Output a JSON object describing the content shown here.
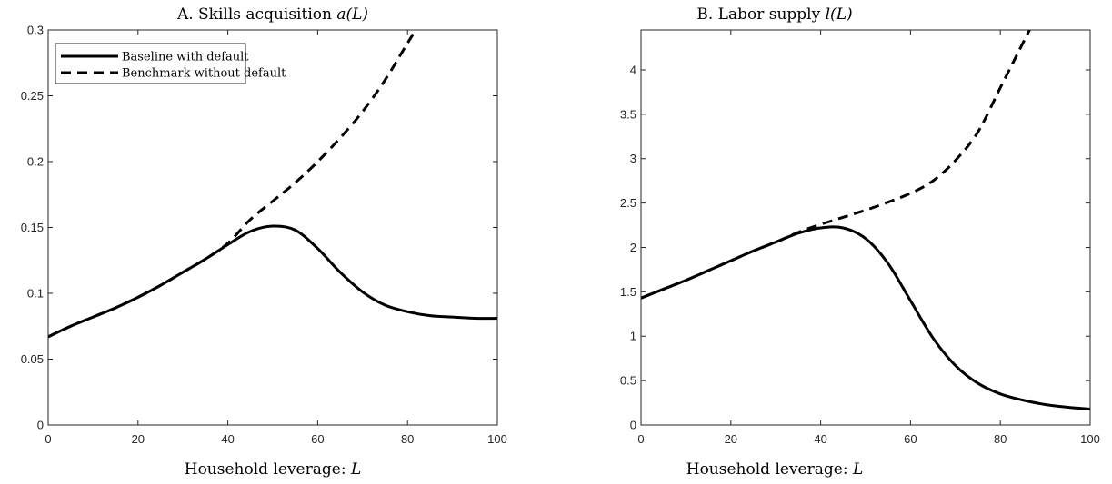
{
  "chart_data": [
    {
      "type": "line",
      "title": "A. Skills acquisition",
      "title_math": "a(L)",
      "xlabel": "Household leverage:",
      "xlabel_math": "L",
      "ylabel": "",
      "xlim": [
        0,
        100
      ],
      "ylim": [
        0,
        0.3
      ],
      "xticks": [
        "0",
        "20",
        "40",
        "60",
        "80",
        "100"
      ],
      "yticks": [
        "0",
        "0.05",
        "0.1",
        "0.15",
        "0.2",
        "0.25",
        "0.3"
      ],
      "grid": false,
      "legend": "top-left",
      "series": [
        {
          "name": "Baseline with default",
          "style": "solid",
          "x": [
            0,
            5,
            10,
            15,
            20,
            25,
            30,
            35,
            40,
            45,
            50,
            55,
            60,
            65,
            70,
            75,
            80,
            85,
            90,
            95,
            100
          ],
          "y": [
            0.067,
            0.075,
            0.082,
            0.089,
            0.097,
            0.106,
            0.116,
            0.126,
            0.137,
            0.147,
            0.151,
            0.148,
            0.134,
            0.116,
            0.101,
            0.091,
            0.086,
            0.083,
            0.082,
            0.081,
            0.081
          ]
        },
        {
          "name": "Benchmark without default",
          "style": "dashed",
          "x": [
            0,
            5,
            10,
            15,
            20,
            25,
            30,
            35,
            40,
            45,
            50,
            55,
            60,
            65,
            70,
            75,
            80,
            82
          ],
          "y": [
            0.067,
            0.075,
            0.082,
            0.089,
            0.097,
            0.106,
            0.116,
            0.126,
            0.138,
            0.156,
            0.17,
            0.184,
            0.2,
            0.218,
            0.238,
            0.262,
            0.29,
            0.301
          ]
        }
      ]
    },
    {
      "type": "line",
      "title": "B. Labor supply",
      "title_math": "l(L)",
      "xlabel": "Household leverage:",
      "xlabel_math": "L",
      "ylabel": "",
      "xlim": [
        0,
        100
      ],
      "ylim": [
        0,
        4.45
      ],
      "xticks": [
        "0",
        "20",
        "40",
        "60",
        "80",
        "100"
      ],
      "yticks": [
        "0",
        "0.5",
        "1",
        "1.5",
        "2",
        "2.5",
        "3",
        "3.5",
        "4"
      ],
      "grid": false,
      "legend": "none",
      "series": [
        {
          "name": "Baseline with default",
          "style": "solid",
          "x": [
            0,
            5,
            10,
            15,
            20,
            25,
            30,
            35,
            40,
            45,
            50,
            55,
            60,
            65,
            70,
            75,
            80,
            85,
            90,
            95,
            100
          ],
          "y": [
            1.43,
            1.53,
            1.63,
            1.74,
            1.85,
            1.96,
            2.06,
            2.16,
            2.22,
            2.22,
            2.1,
            1.82,
            1.4,
            0.98,
            0.67,
            0.47,
            0.35,
            0.28,
            0.23,
            0.2,
            0.18
          ]
        },
        {
          "name": "Benchmark without default",
          "style": "dashed",
          "x": [
            0,
            5,
            10,
            15,
            20,
            25,
            30,
            35,
            40,
            45,
            50,
            55,
            60,
            65,
            70,
            75,
            80,
            82,
            84,
            86,
            87
          ],
          "y": [
            1.43,
            1.53,
            1.63,
            1.74,
            1.85,
            1.96,
            2.06,
            2.17,
            2.26,
            2.34,
            2.42,
            2.51,
            2.61,
            2.75,
            2.98,
            3.3,
            3.8,
            4.0,
            4.2,
            4.4,
            4.5
          ]
        }
      ]
    }
  ]
}
